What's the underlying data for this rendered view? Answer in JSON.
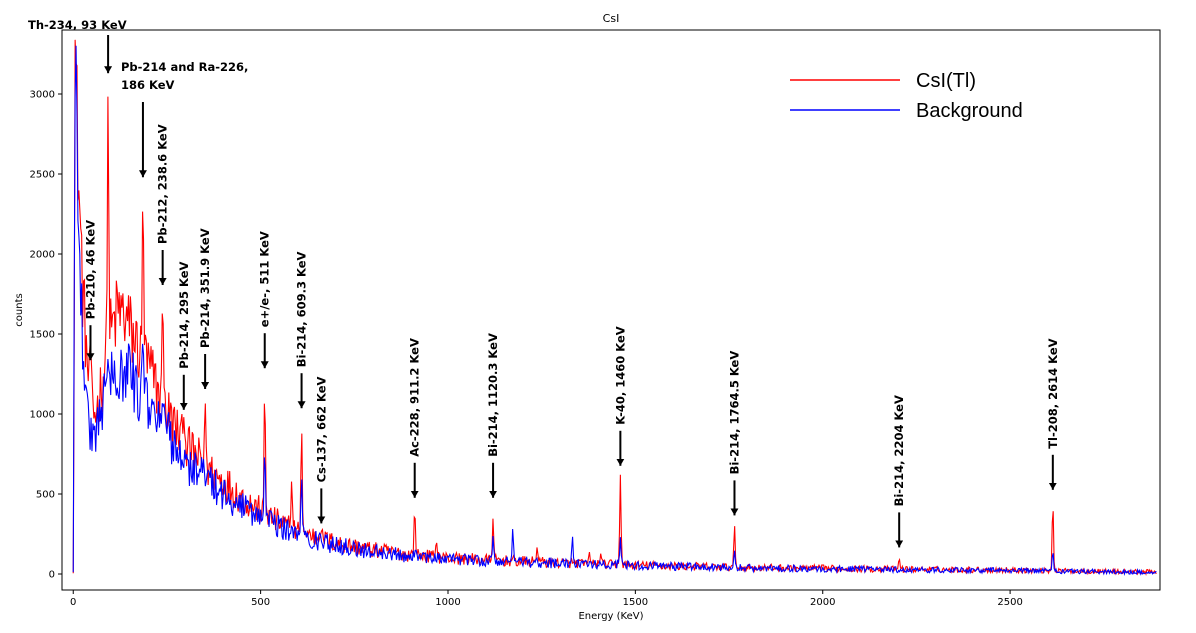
{
  "chart_data": {
    "type": "line",
    "title": "CsI",
    "xlabel": "Energy (KeV)",
    "ylabel": "counts",
    "xlim": [
      -30,
      2900
    ],
    "ylim": [
      -100,
      3400
    ],
    "xticks": [
      0,
      500,
      1000,
      1500,
      2000,
      2500
    ],
    "yticks": [
      0,
      500,
      1000,
      1500,
      2000,
      2500,
      3000
    ],
    "grid": false,
    "legend": "top-right",
    "series": [
      {
        "name": "CsI(Tl)",
        "color": "#ff0000",
        "continuum": [
          [
            0,
            0
          ],
          [
            5,
            3300
          ],
          [
            15,
            2400
          ],
          [
            25,
            1800
          ],
          [
            35,
            1400
          ],
          [
            45,
            1100
          ],
          [
            55,
            1000
          ],
          [
            65,
            1050
          ],
          [
            80,
            1250
          ],
          [
            100,
            1500
          ],
          [
            120,
            1650
          ],
          [
            140,
            1600
          ],
          [
            160,
            1480
          ],
          [
            180,
            1380
          ],
          [
            200,
            1300
          ],
          [
            220,
            1180
          ],
          [
            250,
            1020
          ],
          [
            280,
            880
          ],
          [
            300,
            800
          ],
          [
            350,
            680
          ],
          [
            400,
            580
          ],
          [
            450,
            480
          ],
          [
            500,
            390
          ],
          [
            550,
            320
          ],
          [
            600,
            270
          ],
          [
            650,
            230
          ],
          [
            700,
            195
          ],
          [
            800,
            150
          ],
          [
            900,
            120
          ],
          [
            1000,
            100
          ],
          [
            1100,
            88
          ],
          [
            1200,
            78
          ],
          [
            1300,
            70
          ],
          [
            1400,
            62
          ],
          [
            1500,
            55
          ],
          [
            1600,
            50
          ],
          [
            1700,
            45
          ],
          [
            1800,
            40
          ],
          [
            2000,
            35
          ],
          [
            2200,
            30
          ],
          [
            2500,
            25
          ],
          [
            2620,
            20
          ],
          [
            2900,
            12
          ]
        ],
        "peaks": [
          [
            46,
            1500
          ],
          [
            93,
            3050
          ],
          [
            186,
            2430
          ],
          [
            238.6,
            1750
          ],
          [
            295,
            980
          ],
          [
            351.9,
            1090
          ],
          [
            511,
            1190
          ],
          [
            583,
            590
          ],
          [
            609.3,
            930
          ],
          [
            662,
            270
          ],
          [
            911.2,
            420
          ],
          [
            969,
            210
          ],
          [
            1120.3,
            350
          ],
          [
            1238,
            170
          ],
          [
            1377,
            140
          ],
          [
            1408,
            130
          ],
          [
            1460,
            620
          ],
          [
            1764.5,
            310
          ],
          [
            2204,
            100
          ],
          [
            2614,
            460
          ]
        ]
      },
      {
        "name": "Background",
        "color": "#0000ff",
        "continuum": [
          [
            0,
            0
          ],
          [
            5,
            3300
          ],
          [
            15,
            2300
          ],
          [
            25,
            1500
          ],
          [
            35,
            1050
          ],
          [
            45,
            880
          ],
          [
            55,
            850
          ],
          [
            65,
            950
          ],
          [
            80,
            1100
          ],
          [
            100,
            1250
          ],
          [
            120,
            1300
          ],
          [
            140,
            1270
          ],
          [
            160,
            1200
          ],
          [
            180,
            1120
          ],
          [
            200,
            1050
          ],
          [
            220,
            980
          ],
          [
            250,
            880
          ],
          [
            280,
            780
          ],
          [
            300,
            700
          ],
          [
            350,
            600
          ],
          [
            400,
            500
          ],
          [
            450,
            420
          ],
          [
            500,
            350
          ],
          [
            550,
            290
          ],
          [
            600,
            250
          ],
          [
            650,
            210
          ],
          [
            700,
            180
          ],
          [
            800,
            140
          ],
          [
            900,
            112
          ],
          [
            1000,
            95
          ],
          [
            1100,
            83
          ],
          [
            1200,
            74
          ],
          [
            1300,
            66
          ],
          [
            1400,
            59
          ],
          [
            1500,
            53
          ],
          [
            1600,
            48
          ],
          [
            1700,
            43
          ],
          [
            1800,
            38
          ],
          [
            2000,
            33
          ],
          [
            2200,
            28
          ],
          [
            2500,
            23
          ],
          [
            2620,
            18
          ],
          [
            2900,
            10
          ]
        ],
        "peaks": [
          [
            93,
            1350
          ],
          [
            186,
            1500
          ],
          [
            238.6,
            1100
          ],
          [
            295,
            430
          ],
          [
            351.9,
            480
          ],
          [
            511,
            800
          ],
          [
            609.3,
            620
          ],
          [
            1120.3,
            240
          ],
          [
            1173,
            290
          ],
          [
            1332,
            240
          ],
          [
            1460,
            230
          ],
          [
            1764.5,
            150
          ],
          [
            2614,
            150
          ]
        ]
      }
    ],
    "annotations": [
      {
        "text": "Th-234, 93 KeV",
        "x": 93,
        "y": 3370,
        "vertical": false
      },
      {
        "text": "Pb-214 and Ra-226,",
        "x": 186,
        "y": 3190,
        "vertical": false
      },
      {
        "text": "186 KeV",
        "x": 186,
        "y": 3090,
        "vertical": false
      },
      {
        "text": "Pb-210, 46 KeV",
        "x": 46,
        "y": 1330,
        "vertical": true
      },
      {
        "text": "Pb-212, 238.6 KeV",
        "x": 238.6,
        "y": 1800,
        "vertical": true
      },
      {
        "text": "Pb-214, 295 KeV",
        "x": 295,
        "y": 1020,
        "vertical": true
      },
      {
        "text": "Pb-214, 351.9 KeV",
        "x": 351.9,
        "y": 1150,
        "vertical": true
      },
      {
        "text": "e+/e-, 511 KeV",
        "x": 511,
        "y": 1280,
        "vertical": true
      },
      {
        "text": "Bi-214, 609.3 KeV",
        "x": 609.3,
        "y": 1030,
        "vertical": true
      },
      {
        "text": "Cs-137, 662 KeV",
        "x": 662,
        "y": 310,
        "vertical": true
      },
      {
        "text": "Ac-228, 911.2 KeV",
        "x": 911.2,
        "y": 470,
        "vertical": true
      },
      {
        "text": "Bi-214, 1120.3 KeV",
        "x": 1120.3,
        "y": 470,
        "vertical": true
      },
      {
        "text": "K-40, 1460 KeV",
        "x": 1460,
        "y": 670,
        "vertical": true
      },
      {
        "text": "Bi-214, 1764.5 KeV",
        "x": 1764.5,
        "y": 360,
        "vertical": true
      },
      {
        "text": "Bi-214, 2204 KeV",
        "x": 2204,
        "y": 160,
        "vertical": true
      },
      {
        "text": "Tl-208, 2614 KeV",
        "x": 2614,
        "y": 520,
        "vertical": true
      }
    ]
  }
}
